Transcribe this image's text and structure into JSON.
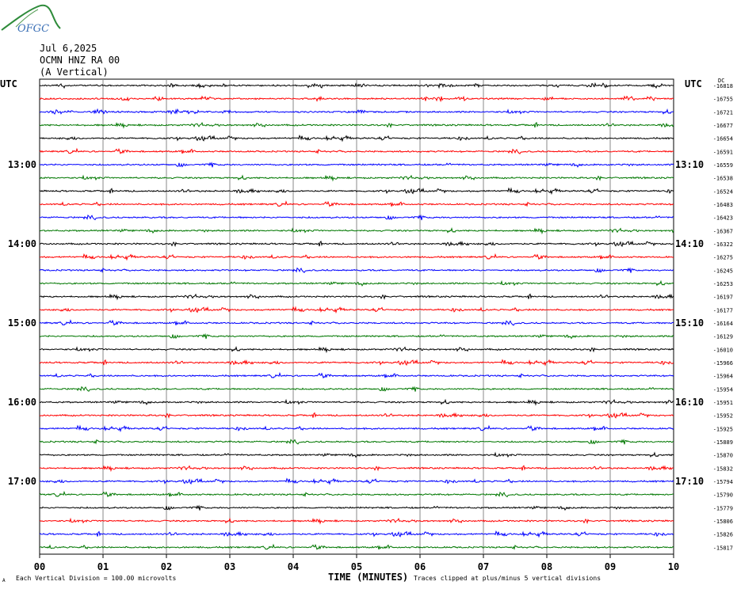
{
  "logo": {
    "text": "OFGC"
  },
  "header": {
    "date": "Jul 6,2025",
    "station": "OCMN HNZ RA 00",
    "component": "(A Vertical)"
  },
  "chart_data": {
    "type": "line",
    "title": "Jul 6,2025",
    "left_axis_title": "UTC",
    "right_axis_title": "UTC",
    "offset_column_title": "DC",
    "xlabel": "TIME (MINUTES)",
    "x_ticks": [
      "00",
      "01",
      "02",
      "03",
      "04",
      "05",
      "06",
      "07",
      "08",
      "09",
      "10"
    ],
    "xlim": [
      0,
      10
    ],
    "left_hour_labels": [
      {
        "label": "13:00",
        "trace_index": 6
      },
      {
        "label": "14:00",
        "trace_index": 12
      },
      {
        "label": "15:00",
        "trace_index": 18
      },
      {
        "label": "16:00",
        "trace_index": 24
      },
      {
        "label": "17:00",
        "trace_index": 30
      }
    ],
    "right_hour_labels": [
      {
        "label": "13:10",
        "trace_index": 6
      },
      {
        "label": "14:10",
        "trace_index": 12
      },
      {
        "label": "15:10",
        "trace_index": 18
      },
      {
        "label": "16:10",
        "trace_index": 24
      },
      {
        "label": "17:10",
        "trace_index": 30
      }
    ],
    "trace_colors": [
      "#000000",
      "#ff0000",
      "#0000ff",
      "#007700"
    ],
    "trace_offsets": [
      "-16818",
      "-16755",
      "-16721",
      "-16677",
      "-16654",
      "-16591",
      "-16559",
      "-16538",
      "-16524",
      "-16483",
      "-16423",
      "-16367",
      "-16322",
      "-16275",
      "-16245",
      "-16253",
      "-16197",
      "-16177",
      "-16164",
      "-16129",
      "-16010",
      "-15966",
      "-15964",
      "-15954",
      "-15951",
      "-15952",
      "-15925",
      "-15889",
      "-15870",
      "-15832",
      "-15794",
      "-15790",
      "-15779",
      "-15806",
      "-15826",
      "-15817"
    ],
    "grid": true,
    "footer_left": "Each Vertical Division =  100.00 microvolts",
    "footer_right": "Traces clipped at plus/minus 5 vertical divisions",
    "corner_mark": "A"
  }
}
